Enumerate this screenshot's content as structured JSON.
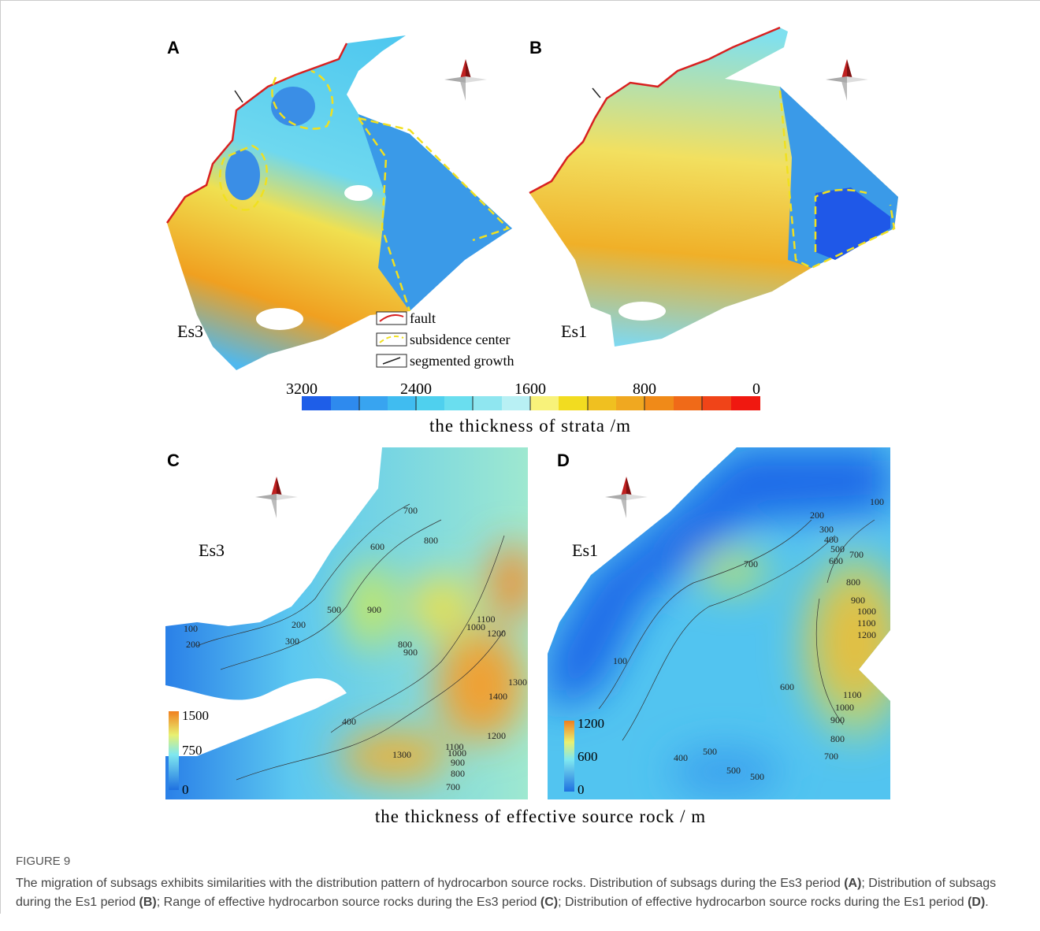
{
  "panels": [
    {
      "label": "A",
      "period": "Es3"
    },
    {
      "label": "B",
      "period": "Es1"
    },
    {
      "label": "C",
      "period": "Es3",
      "colorbar": [
        "1500",
        "750",
        "0"
      ],
      "contours": [
        "100",
        "200",
        "200",
        "300",
        "500",
        "600",
        "700",
        "800",
        "900",
        "800",
        "900",
        "1000",
        "1100",
        "1200",
        "1300",
        "1400",
        "1200",
        "400",
        "1300",
        "1100",
        "1000",
        "900",
        "800",
        "700"
      ]
    },
    {
      "label": "D",
      "period": "Es1",
      "colorbar": [
        "1200",
        "600",
        "0"
      ],
      "contours": [
        "100",
        "200",
        "300",
        "400",
        "500",
        "600",
        "700",
        "800",
        "900",
        "1000",
        "1100",
        "1200",
        "700",
        "100",
        "600",
        "1100",
        "1000",
        "900",
        "800",
        "700",
        "400",
        "500",
        "500",
        "500"
      ]
    }
  ],
  "legend": [
    "fault",
    "subsidence center",
    "segmented growth"
  ],
  "strata_colorbar": {
    "ticks": [
      "3200",
      "2400",
      "1600",
      "800",
      "0"
    ],
    "title": "the thickness of strata /m"
  },
  "source_rock_title": "the thickness of effective source rock / m",
  "caption": {
    "label": "FIGURE 9",
    "parts": [
      "The migration of subsags exhibits similarities with the distribution pattern of hydrocarbon source rocks. Distribution of subsags during the Es3 period ",
      "(A)",
      "; Distribution of subsags during the Es1 period ",
      "(B)",
      "; Range of effective hydrocarbon source rocks during the Es3 period ",
      "(C)",
      "; Distribution of effective hydrocarbon source rocks during the Es1 period ",
      "(D)",
      "."
    ]
  }
}
